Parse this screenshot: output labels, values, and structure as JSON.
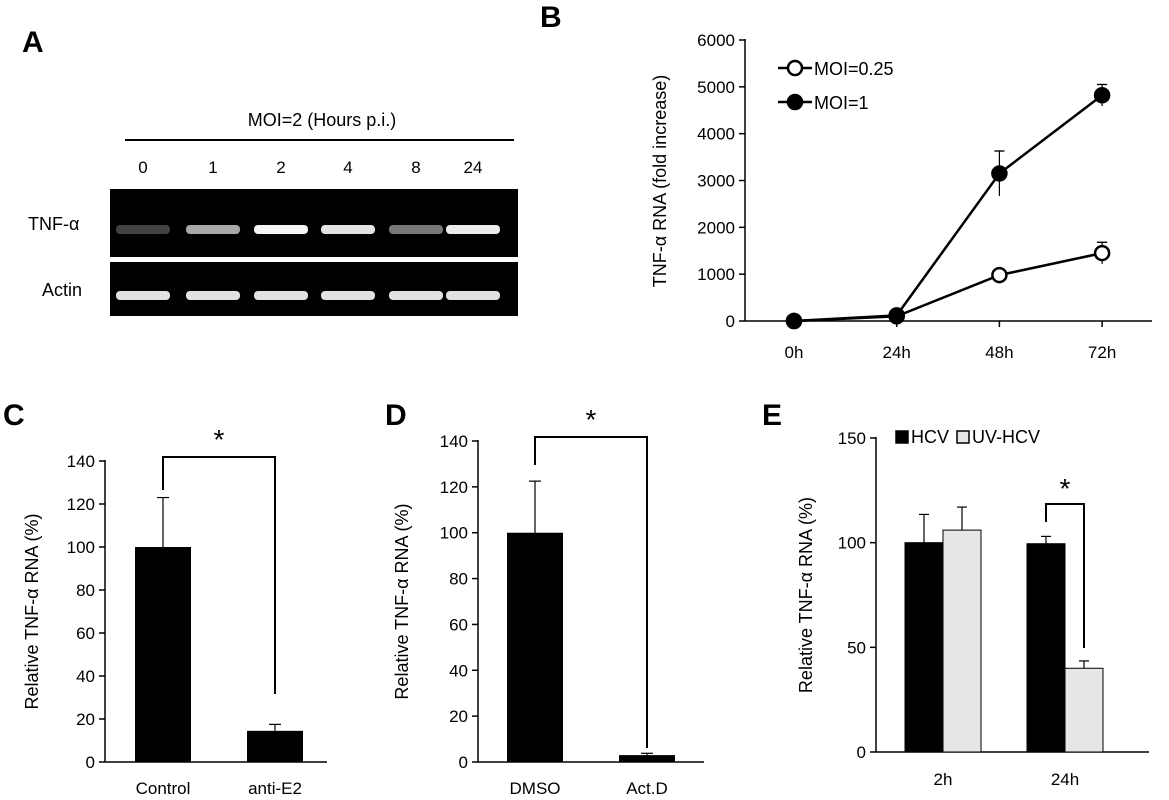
{
  "panel_labels": {
    "a": "A",
    "b": "B",
    "c": "C",
    "d": "D",
    "e": "E"
  },
  "gel": {
    "header": "MOI=2 (Hours p.i.)",
    "lanes": [
      "0",
      "1",
      "2",
      "4",
      "8",
      "24"
    ],
    "rows": [
      {
        "label": "TNF-α",
        "intensities": [
          0.03,
          0.55,
          0.95,
          0.85,
          0.3,
          0.9
        ]
      },
      {
        "label": "Actin",
        "intensities": [
          0.85,
          0.85,
          0.85,
          0.85,
          0.85,
          0.85
        ]
      }
    ]
  },
  "chart_data": [
    {
      "panel": "B",
      "type": "line",
      "categories": [
        "0h",
        "24h",
        "48h",
        "72h"
      ],
      "ylabel": "TNF-α RNA (fold increase)",
      "ylim": [
        0,
        6000
      ],
      "yticks": [
        0,
        1000,
        2000,
        3000,
        4000,
        5000,
        6000
      ],
      "legend_position": "top-left",
      "series": [
        {
          "name": "MOI=0.25",
          "marker": "open-circle",
          "values": [
            0,
            100,
            980,
            1450
          ],
          "errors": [
            0,
            0,
            0,
            230
          ]
        },
        {
          "name": "MOI=1",
          "marker": "filled-circle",
          "values": [
            0,
            120,
            3150,
            4820
          ],
          "errors": [
            0,
            0,
            480,
            230
          ]
        }
      ]
    },
    {
      "panel": "C",
      "type": "bar",
      "categories": [
        "Control",
        "anti-E2"
      ],
      "values": [
        100,
        14.5
      ],
      "errors": [
        23,
        3
      ],
      "ylabel": "Relative TNF-α RNA (%)",
      "ylim": [
        0,
        140
      ],
      "yticks": [
        0,
        20,
        40,
        60,
        80,
        100,
        120,
        140
      ],
      "bar_color": "#000000",
      "significance": "*"
    },
    {
      "panel": "D",
      "type": "bar",
      "categories": [
        "DMSO",
        "Act.D"
      ],
      "values": [
        100,
        3
      ],
      "errors": [
        22.5,
        0.8
      ],
      "ylabel": "Relative TNF-α RNA (%)",
      "ylim": [
        0,
        140
      ],
      "yticks": [
        0,
        20,
        40,
        60,
        80,
        100,
        120,
        140
      ],
      "bar_color": "#000000",
      "significance": "*"
    },
    {
      "panel": "E",
      "type": "bar",
      "categories": [
        "2h",
        "24h"
      ],
      "ylabel": "Relative TNF-α RNA (%)",
      "ylim": [
        0,
        150
      ],
      "yticks": [
        0,
        50,
        100,
        150
      ],
      "legend_position": "top-left",
      "series": [
        {
          "name": "HCV",
          "color": "#000000",
          "values": [
            100,
            99.5
          ],
          "errors": [
            13.5,
            3.5
          ]
        },
        {
          "name": "UV-HCV",
          "color": "#e6e6e6",
          "values": [
            106,
            40
          ],
          "errors": [
            11,
            3.5
          ]
        }
      ],
      "significance": "*"
    }
  ]
}
